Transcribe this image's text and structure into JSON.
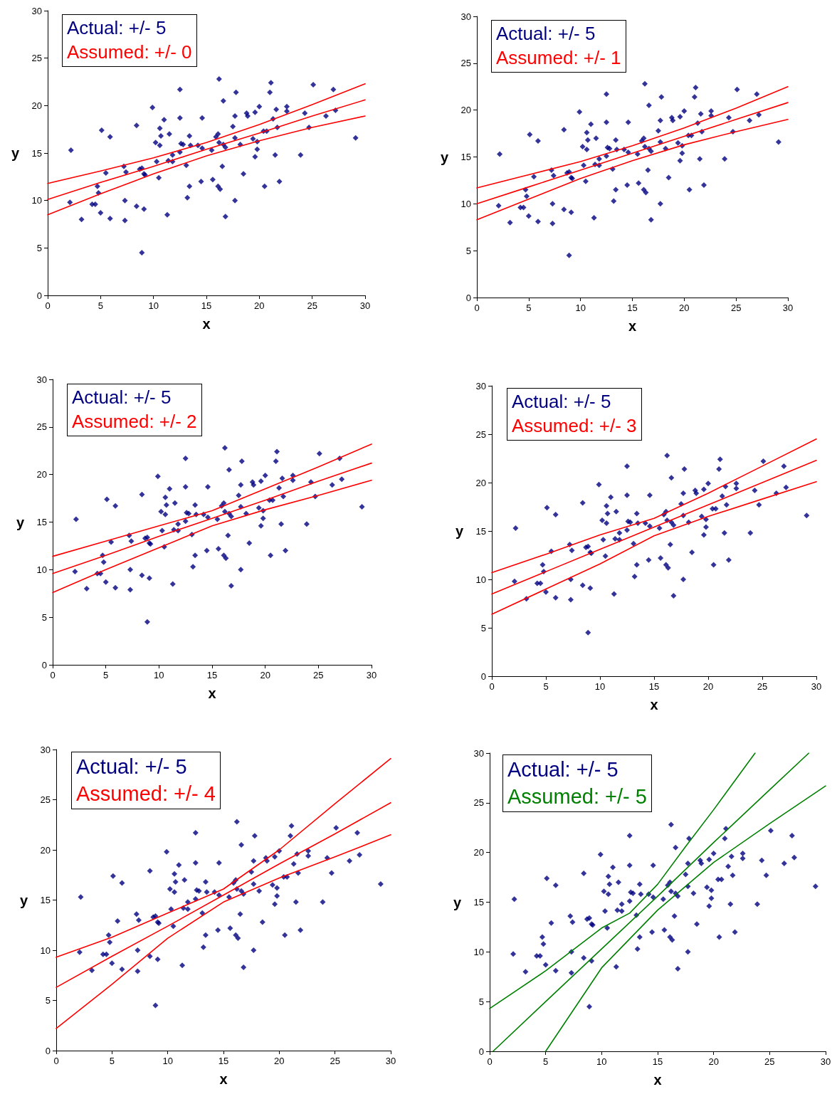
{
  "chart_data": [
    {
      "type": "scatter",
      "xlabel": "x",
      "ylabel": "y",
      "xlim": [
        0,
        30
      ],
      "ylim": [
        0,
        30
      ],
      "xticks": [
        0,
        5,
        10,
        15,
        20,
        25,
        30
      ],
      "yticks": [
        0,
        5,
        10,
        15,
        20,
        25,
        30
      ],
      "grid": false,
      "annotations": [
        "Actual: +/- 5",
        "Assumed: +/- 0"
      ],
      "series": [
        {
          "marker": "diamond",
          "color": "#000080",
          "x": [
            2.2,
            2.1,
            3.2,
            4.2,
            4.5,
            4.7,
            4.8,
            5.0,
            5.1,
            5.5,
            5.9,
            5.9,
            7.2,
            7.4,
            7.3,
            7.3,
            8.4,
            8.4,
            8.7,
            8.9,
            9.1,
            9.2,
            9.1,
            8.9,
            9.9,
            10.2,
            10.3,
            10.6,
            10.7,
            10.6,
            10.5,
            11.0,
            11.5,
            11.4,
            11.8,
            11.8,
            11.3,
            12.5,
            12.5,
            12.6,
            12.8,
            12.5,
            13.4,
            13.5,
            13.1,
            13.4,
            13.2,
            14.2,
            14.6,
            14.6,
            14.5,
            16.2,
            16.6,
            15.9,
            16.1,
            16.2,
            15.5,
            16.6,
            16.8,
            16.5,
            15.6,
            16.1,
            16.3,
            16.8,
            17.8,
            17.7,
            17.5,
            17.7,
            18.2,
            17.7,
            18.5,
            18.8,
            18.9,
            19.6,
            20.0,
            19.4,
            19.8,
            19.8,
            19.6,
            20.4,
            20.7,
            20.5,
            21.1,
            21.0,
            21.6,
            21.3,
            21.7,
            21.5,
            21.9,
            22.6,
            22.6,
            23.9,
            24.3,
            24.7,
            25.1,
            26.3,
            27.0,
            27.2,
            29.1
          ],
          "values": [
            15.3,
            9.8,
            8.0,
            9.6,
            9.6,
            11.5,
            10.8,
            8.7,
            17.4,
            12.9,
            16.7,
            8.1,
            13.6,
            13.0,
            10.0,
            7.9,
            17.9,
            9.4,
            13.3,
            13.4,
            12.8,
            12.7,
            9.1,
            4.5,
            19.8,
            16.1,
            14.1,
            17.6,
            16.8,
            15.8,
            12.4,
            18.5,
            17.0,
            14.2,
            14.8,
            14.1,
            8.5,
            21.7,
            18.7,
            16.0,
            15.9,
            15.1,
            16.8,
            15.8,
            13.7,
            11.5,
            10.3,
            15.8,
            15.5,
            18.7,
            12.0,
            22.8,
            20.5,
            16.7,
            17.0,
            16.1,
            15.3,
            15.9,
            15.6,
            13.6,
            12.2,
            11.5,
            11.2,
            8.3,
            21.4,
            18.9,
            17.8,
            16.6,
            15.9,
            10.0,
            12.8,
            19.2,
            18.9,
            19.3,
            19.9,
            16.5,
            16.2,
            15.4,
            14.6,
            17.3,
            17.3,
            11.5,
            22.4,
            21.4,
            19.6,
            18.6,
            17.7,
            14.8,
            12.0,
            19.9,
            19.4,
            14.8,
            19.2,
            17.7,
            22.2,
            18.9,
            21.7,
            19.5,
            16.6
          ]
        },
        {
          "type": "line",
          "color": "#ff0000",
          "x": [
            0,
            5,
            10,
            15,
            20,
            25,
            30
          ],
          "values": [
            11.8,
            13.1,
            14.5,
            16.1,
            18.0,
            20.1,
            22.3
          ]
        },
        {
          "type": "line",
          "color": "#ff0000",
          "x": [
            0,
            5,
            10,
            15,
            20,
            25,
            30
          ],
          "values": [
            10.1,
            11.9,
            13.6,
            15.4,
            17.1,
            18.9,
            20.6
          ]
        },
        {
          "type": "line",
          "color": "#ff0000",
          "x": [
            0,
            5,
            10,
            15,
            20,
            25,
            30
          ],
          "values": [
            8.5,
            10.7,
            12.8,
            14.7,
            16.3,
            17.7,
            18.9
          ]
        }
      ]
    },
    {
      "type": "scatter",
      "xlabel": "x",
      "ylabel": "y",
      "xlim": [
        0,
        30
      ],
      "ylim": [
        0,
        30
      ],
      "xticks": [
        0,
        5,
        10,
        15,
        20,
        25,
        30
      ],
      "yticks": [
        0,
        5,
        10,
        15,
        20,
        25,
        30
      ],
      "grid": false,
      "annotations": [
        "Actual: +/- 5",
        "Assumed: +/- 1"
      ],
      "series": [
        {
          "marker": "diamond",
          "color": "#000080",
          "x": [
            2.2,
            2.1,
            3.2,
            4.2,
            4.5,
            4.7,
            4.8,
            5.0,
            5.1,
            5.5,
            5.9,
            5.9,
            7.2,
            7.4,
            7.3,
            7.3,
            8.4,
            8.4,
            8.7,
            8.9,
            9.1,
            9.2,
            9.1,
            8.9,
            9.9,
            10.2,
            10.3,
            10.6,
            10.7,
            10.6,
            10.5,
            11.0,
            11.5,
            11.4,
            11.8,
            11.8,
            11.3,
            12.5,
            12.5,
            12.6,
            12.8,
            12.5,
            13.4,
            13.5,
            13.1,
            13.4,
            13.2,
            14.2,
            14.6,
            14.6,
            14.5,
            16.2,
            16.6,
            15.9,
            16.1,
            16.2,
            15.5,
            16.6,
            16.8,
            16.5,
            15.6,
            16.1,
            16.3,
            16.8,
            17.8,
            17.7,
            17.5,
            17.7,
            18.2,
            17.7,
            18.5,
            18.8,
            18.9,
            19.6,
            20.0,
            19.4,
            19.8,
            19.8,
            19.6,
            20.4,
            20.7,
            20.5,
            21.1,
            21.0,
            21.6,
            21.3,
            21.7,
            21.5,
            21.9,
            22.6,
            22.6,
            23.9,
            24.3,
            24.7,
            25.1,
            26.3,
            27.0,
            27.2,
            29.1
          ],
          "values": [
            15.3,
            9.8,
            8.0,
            9.6,
            9.6,
            11.5,
            10.8,
            8.7,
            17.4,
            12.9,
            16.7,
            8.1,
            13.6,
            13.0,
            10.0,
            7.9,
            17.9,
            9.4,
            13.3,
            13.4,
            12.8,
            12.7,
            9.1,
            4.5,
            19.8,
            16.1,
            14.1,
            17.6,
            16.8,
            15.8,
            12.4,
            18.5,
            17.0,
            14.2,
            14.8,
            14.1,
            8.5,
            21.7,
            18.7,
            16.0,
            15.9,
            15.1,
            16.8,
            15.8,
            13.7,
            11.5,
            10.3,
            15.8,
            15.5,
            18.7,
            12.0,
            22.8,
            20.5,
            16.7,
            17.0,
            16.1,
            15.3,
            15.9,
            15.6,
            13.6,
            12.2,
            11.5,
            11.2,
            8.3,
            21.4,
            18.9,
            17.8,
            16.6,
            15.9,
            10.0,
            12.8,
            19.2,
            18.9,
            19.3,
            19.9,
            16.5,
            16.2,
            15.4,
            14.6,
            17.3,
            17.3,
            11.5,
            22.4,
            21.4,
            19.6,
            18.6,
            17.7,
            14.8,
            12.0,
            19.9,
            19.4,
            14.8,
            19.2,
            17.7,
            22.2,
            18.9,
            21.7,
            19.5,
            16.6
          ]
        },
        {
          "type": "line",
          "color": "#ff0000",
          "x": [
            0,
            5,
            10,
            15,
            20,
            25,
            30
          ],
          "values": [
            11.7,
            13.1,
            14.5,
            16.2,
            18.1,
            20.2,
            22.5
          ]
        },
        {
          "type": "line",
          "color": "#ff0000",
          "x": [
            0,
            5,
            10,
            15,
            20,
            25,
            30
          ],
          "values": [
            10.0,
            11.8,
            13.6,
            15.4,
            17.2,
            19.0,
            20.8
          ]
        },
        {
          "type": "line",
          "color": "#ff0000",
          "x": [
            0,
            5,
            10,
            15,
            20,
            25,
            30
          ],
          "values": [
            8.3,
            10.5,
            12.7,
            14.6,
            16.3,
            17.7,
            19.0
          ]
        }
      ]
    },
    {
      "type": "scatter",
      "xlabel": "x",
      "ylabel": "y",
      "xlim": [
        0,
        30
      ],
      "ylim": [
        0,
        30
      ],
      "xticks": [
        0,
        5,
        10,
        15,
        20,
        25,
        30
      ],
      "yticks": [
        0,
        5,
        10,
        15,
        20,
        25,
        30
      ],
      "grid": false,
      "annotations": [
        "Actual: +/- 5",
        "Assumed: +/- 2"
      ],
      "series": [
        {
          "marker": "diamond",
          "color": "#000080",
          "x": [
            2.2,
            2.1,
            3.2,
            4.2,
            4.5,
            4.7,
            4.8,
            5.0,
            5.1,
            5.5,
            5.9,
            5.9,
            7.2,
            7.4,
            7.3,
            7.3,
            8.4,
            8.4,
            8.7,
            8.9,
            9.1,
            9.2,
            9.1,
            8.9,
            9.9,
            10.2,
            10.3,
            10.6,
            10.7,
            10.6,
            10.5,
            11.0,
            11.5,
            11.4,
            11.8,
            11.8,
            11.3,
            12.5,
            12.5,
            12.6,
            12.8,
            12.5,
            13.4,
            13.5,
            13.1,
            13.4,
            13.2,
            14.2,
            14.6,
            14.6,
            14.5,
            16.2,
            16.6,
            15.9,
            16.1,
            16.2,
            15.5,
            16.6,
            16.8,
            16.5,
            15.6,
            16.1,
            16.3,
            16.8,
            17.8,
            17.7,
            17.5,
            17.7,
            18.2,
            17.7,
            18.5,
            18.8,
            18.9,
            19.6,
            20.0,
            19.4,
            19.8,
            19.8,
            19.6,
            20.4,
            20.7,
            20.5,
            21.1,
            21.0,
            21.6,
            21.3,
            21.7,
            21.5,
            21.9,
            22.6,
            22.6,
            23.9,
            24.3,
            24.7,
            25.1,
            26.3,
            27.0,
            27.2,
            29.1
          ],
          "values": [
            15.3,
            9.8,
            8.0,
            9.6,
            9.6,
            11.5,
            10.8,
            8.7,
            17.4,
            12.9,
            16.7,
            8.1,
            13.6,
            13.0,
            10.0,
            7.9,
            17.9,
            9.4,
            13.3,
            13.4,
            12.8,
            12.7,
            9.1,
            4.5,
            19.8,
            16.1,
            14.1,
            17.6,
            16.8,
            15.8,
            12.4,
            18.5,
            17.0,
            14.2,
            14.8,
            14.1,
            8.5,
            21.7,
            18.7,
            16.0,
            15.9,
            15.1,
            16.8,
            15.8,
            13.7,
            11.5,
            10.3,
            15.8,
            15.5,
            18.7,
            12.0,
            22.8,
            20.5,
            16.7,
            17.0,
            16.1,
            15.3,
            15.9,
            15.6,
            13.6,
            12.2,
            11.5,
            11.2,
            8.3,
            21.4,
            18.9,
            17.8,
            16.6,
            15.9,
            10.0,
            12.8,
            19.2,
            18.9,
            19.3,
            19.9,
            16.5,
            16.2,
            15.4,
            14.6,
            17.3,
            17.3,
            11.5,
            22.4,
            21.4,
            19.6,
            18.6,
            17.7,
            14.8,
            12.0,
            19.9,
            19.4,
            14.8,
            19.2,
            17.7,
            22.2,
            18.9,
            21.7,
            19.5,
            16.6
          ]
        },
        {
          "type": "line",
          "color": "#ff0000",
          "x": [
            0,
            5,
            10,
            15,
            20,
            25,
            30
          ],
          "values": [
            11.4,
            13.0,
            14.6,
            16.2,
            18.5,
            20.8,
            23.2
          ]
        },
        {
          "type": "line",
          "color": "#ff0000",
          "x": [
            0,
            5,
            10,
            15,
            20,
            25,
            30
          ],
          "values": [
            9.6,
            11.5,
            13.5,
            15.4,
            17.3,
            19.3,
            21.2
          ]
        },
        {
          "type": "line",
          "color": "#ff0000",
          "x": [
            0,
            5,
            10,
            15,
            20,
            25,
            30
          ],
          "values": [
            7.6,
            10.0,
            12.3,
            14.6,
            16.3,
            17.8,
            19.4
          ]
        }
      ]
    },
    {
      "type": "scatter",
      "xlabel": "x",
      "ylabel": "y",
      "xlim": [
        0,
        30
      ],
      "ylim": [
        0,
        30
      ],
      "xticks": [
        0,
        5,
        10,
        15,
        20,
        25,
        30
      ],
      "yticks": [
        0,
        5,
        10,
        15,
        20,
        25,
        30
      ],
      "grid": false,
      "annotations": [
        "Actual: +/- 5",
        "Assumed: +/- 3"
      ],
      "series": [
        {
          "marker": "diamond",
          "color": "#000080",
          "x": [
            2.2,
            2.1,
            3.2,
            4.2,
            4.5,
            4.7,
            4.8,
            5.0,
            5.1,
            5.5,
            5.9,
            5.9,
            7.2,
            7.4,
            7.3,
            7.3,
            8.4,
            8.4,
            8.7,
            8.9,
            9.1,
            9.2,
            9.1,
            8.9,
            9.9,
            10.2,
            10.3,
            10.6,
            10.7,
            10.6,
            10.5,
            11.0,
            11.5,
            11.4,
            11.8,
            11.8,
            11.3,
            12.5,
            12.5,
            12.6,
            12.8,
            12.5,
            13.4,
            13.5,
            13.1,
            13.4,
            13.2,
            14.2,
            14.6,
            14.6,
            14.5,
            16.2,
            16.6,
            15.9,
            16.1,
            16.2,
            15.5,
            16.6,
            16.8,
            16.5,
            15.6,
            16.1,
            16.3,
            16.8,
            17.8,
            17.7,
            17.5,
            17.7,
            18.2,
            17.7,
            18.5,
            18.8,
            18.9,
            19.6,
            20.0,
            19.4,
            19.8,
            19.8,
            19.6,
            20.4,
            20.7,
            20.5,
            21.1,
            21.0,
            21.6,
            21.3,
            21.7,
            21.5,
            21.9,
            22.6,
            22.6,
            23.9,
            24.3,
            24.7,
            25.1,
            26.3,
            27.0,
            27.2,
            29.1
          ],
          "values": [
            15.3,
            9.8,
            8.0,
            9.6,
            9.6,
            11.5,
            10.8,
            8.7,
            17.4,
            12.9,
            16.7,
            8.1,
            13.6,
            13.0,
            10.0,
            7.9,
            17.9,
            9.4,
            13.3,
            13.4,
            12.8,
            12.7,
            9.1,
            4.5,
            19.8,
            16.1,
            14.1,
            17.6,
            16.8,
            15.8,
            12.4,
            18.5,
            17.0,
            14.2,
            14.8,
            14.1,
            8.5,
            21.7,
            18.7,
            16.0,
            15.9,
            15.1,
            16.8,
            15.8,
            13.7,
            11.5,
            10.3,
            15.8,
            15.5,
            18.7,
            12.0,
            22.8,
            20.5,
            16.7,
            17.0,
            16.1,
            15.3,
            15.9,
            15.6,
            13.6,
            12.2,
            11.5,
            11.2,
            8.3,
            21.4,
            18.9,
            17.8,
            16.6,
            15.9,
            10.0,
            12.8,
            19.2,
            18.9,
            19.3,
            19.9,
            16.5,
            16.2,
            15.4,
            14.6,
            17.3,
            17.3,
            11.5,
            22.4,
            21.4,
            19.6,
            18.6,
            17.7,
            14.8,
            12.0,
            19.9,
            19.4,
            14.8,
            19.2,
            17.7,
            22.2,
            18.9,
            21.7,
            19.5,
            16.6
          ]
        },
        {
          "type": "line",
          "color": "#ff0000",
          "x": [
            0,
            5,
            10,
            15,
            20,
            25,
            30
          ],
          "values": [
            10.7,
            12.6,
            14.6,
            16.3,
            18.9,
            21.7,
            24.5
          ]
        },
        {
          "type": "line",
          "color": "#ff0000",
          "x": [
            0,
            5,
            10,
            15,
            20,
            25,
            30
          ],
          "values": [
            8.5,
            10.8,
            13.1,
            15.4,
            17.7,
            20.0,
            22.3
          ]
        },
        {
          "type": "line",
          "color": "#ff0000",
          "x": [
            0,
            5,
            10,
            15,
            20,
            25,
            30
          ],
          "values": [
            6.4,
            9.0,
            11.6,
            14.5,
            16.5,
            18.3,
            20.1
          ]
        }
      ]
    },
    {
      "type": "scatter",
      "xlabel": "x",
      "ylabel": "y",
      "xlim": [
        0,
        30
      ],
      "ylim": [
        0,
        30
      ],
      "xticks": [
        0,
        5,
        10,
        15,
        20,
        25,
        30
      ],
      "yticks": [
        0,
        5,
        10,
        15,
        20,
        25,
        30
      ],
      "grid": false,
      "annotations": [
        "Actual: +/- 5",
        "Assumed: +/- 4"
      ],
      "series": [
        {
          "marker": "diamond",
          "color": "#000080",
          "x": [
            2.2,
            2.1,
            3.2,
            4.2,
            4.5,
            4.7,
            4.8,
            5.0,
            5.1,
            5.5,
            5.9,
            5.9,
            7.2,
            7.4,
            7.3,
            7.3,
            8.4,
            8.4,
            8.7,
            8.9,
            9.1,
            9.2,
            9.1,
            8.9,
            9.9,
            10.2,
            10.3,
            10.6,
            10.7,
            10.6,
            10.5,
            11.0,
            11.5,
            11.4,
            11.8,
            11.8,
            11.3,
            12.5,
            12.5,
            12.6,
            12.8,
            12.5,
            13.4,
            13.5,
            13.1,
            13.4,
            13.2,
            14.2,
            14.6,
            14.6,
            14.5,
            16.2,
            16.6,
            15.9,
            16.1,
            16.2,
            15.5,
            16.6,
            16.8,
            16.5,
            15.6,
            16.1,
            16.3,
            16.8,
            17.8,
            17.7,
            17.5,
            17.7,
            18.2,
            17.7,
            18.5,
            18.8,
            18.9,
            19.6,
            20.0,
            19.4,
            19.8,
            19.8,
            19.6,
            20.4,
            20.7,
            20.5,
            21.1,
            21.0,
            21.6,
            21.3,
            21.7,
            21.5,
            21.9,
            22.6,
            22.6,
            23.9,
            24.3,
            24.7,
            25.1,
            26.3,
            27.0,
            27.2,
            29.1
          ],
          "values": [
            15.3,
            9.8,
            8.0,
            9.6,
            9.6,
            11.5,
            10.8,
            8.7,
            17.4,
            12.9,
            16.7,
            8.1,
            13.6,
            13.0,
            10.0,
            7.9,
            17.9,
            9.4,
            13.3,
            13.4,
            12.8,
            12.7,
            9.1,
            4.5,
            19.8,
            16.1,
            14.1,
            17.6,
            16.8,
            15.8,
            12.4,
            18.5,
            17.0,
            14.2,
            14.8,
            14.1,
            8.5,
            21.7,
            18.7,
            16.0,
            15.9,
            15.1,
            16.8,
            15.8,
            13.7,
            11.5,
            10.3,
            15.8,
            15.5,
            18.7,
            12.0,
            22.8,
            20.5,
            16.7,
            17.0,
            16.1,
            15.3,
            15.9,
            15.6,
            13.6,
            12.2,
            11.5,
            11.2,
            8.3,
            21.4,
            18.9,
            17.8,
            16.6,
            15.9,
            10.0,
            12.8,
            19.2,
            18.9,
            19.3,
            19.9,
            16.5,
            16.2,
            15.4,
            14.6,
            17.3,
            17.3,
            11.5,
            22.4,
            21.4,
            19.6,
            18.6,
            17.7,
            14.8,
            12.0,
            19.9,
            19.4,
            14.8,
            19.2,
            17.7,
            22.2,
            18.9,
            21.7,
            19.5,
            16.6
          ]
        },
        {
          "type": "line",
          "color": "#ff0000",
          "x": [
            0,
            5,
            10,
            15,
            20,
            25,
            30
          ],
          "values": [
            9.3,
            11.3,
            13.7,
            16.1,
            20.0,
            24.6,
            29.1
          ]
        },
        {
          "type": "line",
          "color": "#ff0000",
          "x": [
            0,
            5,
            10,
            15,
            20,
            25,
            30
          ],
          "values": [
            6.3,
            9.4,
            12.4,
            15.5,
            18.6,
            21.6,
            24.7
          ]
        },
        {
          "type": "line",
          "color": "#ff0000",
          "x": [
            0,
            5,
            10,
            15,
            20,
            25,
            30
          ],
          "values": [
            2.2,
            6.6,
            11.2,
            14.8,
            17.2,
            19.3,
            21.5
          ]
        }
      ]
    },
    {
      "type": "scatter",
      "xlabel": "x",
      "ylabel": "y",
      "xlim": [
        0,
        30
      ],
      "ylim": [
        0,
        30
      ],
      "xticks": [
        0,
        5,
        10,
        15,
        20,
        25,
        30
      ],
      "yticks": [
        0,
        5,
        10,
        15,
        20,
        25,
        30
      ],
      "grid": false,
      "annotations": [
        "Actual: +/- 5",
        "Assumed: +/- 5"
      ],
      "series": [
        {
          "marker": "diamond",
          "color": "#000080",
          "x": [
            2.2,
            2.1,
            3.2,
            4.2,
            4.5,
            4.7,
            4.8,
            5.0,
            5.1,
            5.5,
            5.9,
            5.9,
            7.2,
            7.4,
            7.3,
            7.3,
            8.4,
            8.4,
            8.7,
            8.9,
            9.1,
            9.2,
            9.1,
            8.9,
            9.9,
            10.2,
            10.3,
            10.6,
            10.7,
            10.6,
            10.5,
            11.0,
            11.5,
            11.4,
            11.8,
            11.8,
            11.3,
            12.5,
            12.5,
            12.6,
            12.8,
            12.5,
            13.4,
            13.5,
            13.1,
            13.4,
            13.2,
            14.2,
            14.6,
            14.6,
            14.5,
            16.2,
            16.6,
            15.9,
            16.1,
            16.2,
            15.5,
            16.6,
            16.8,
            16.5,
            15.6,
            16.1,
            16.3,
            16.8,
            17.8,
            17.7,
            17.5,
            17.7,
            18.2,
            17.7,
            18.5,
            18.8,
            18.9,
            19.6,
            20.0,
            19.4,
            19.8,
            19.8,
            19.6,
            20.4,
            20.7,
            20.5,
            21.1,
            21.0,
            21.6,
            21.3,
            21.7,
            21.5,
            21.9,
            22.6,
            22.6,
            23.9,
            24.3,
            24.7,
            25.1,
            26.3,
            27.0,
            27.2,
            29.1
          ],
          "values": [
            15.3,
            9.8,
            8.0,
            9.6,
            9.6,
            11.5,
            10.8,
            8.7,
            17.4,
            12.9,
            16.7,
            8.1,
            13.6,
            13.0,
            10.0,
            7.9,
            17.9,
            9.4,
            13.3,
            13.4,
            12.8,
            12.7,
            9.1,
            4.5,
            19.8,
            16.1,
            14.1,
            17.6,
            16.8,
            15.8,
            12.4,
            18.5,
            17.0,
            14.2,
            14.8,
            14.1,
            8.5,
            21.7,
            18.7,
            16.0,
            15.9,
            15.1,
            16.8,
            15.8,
            13.7,
            11.5,
            10.3,
            15.8,
            15.5,
            18.7,
            12.0,
            22.8,
            20.5,
            16.7,
            17.0,
            16.1,
            15.3,
            15.9,
            15.6,
            13.6,
            12.2,
            11.5,
            11.2,
            8.3,
            21.4,
            18.9,
            17.8,
            16.6,
            15.9,
            10.0,
            12.8,
            19.2,
            18.9,
            19.3,
            19.9,
            16.5,
            16.2,
            15.4,
            14.6,
            17.3,
            17.3,
            11.5,
            22.4,
            21.4,
            19.6,
            18.6,
            17.7,
            14.8,
            12.0,
            19.9,
            19.4,
            14.8,
            19.2,
            17.7,
            22.2,
            18.9,
            21.7,
            19.5,
            16.6
          ]
        },
        {
          "type": "line",
          "color": "#008000",
          "x": [
            0,
            5,
            10,
            12.5,
            15,
            17.5,
            20,
            23.7
          ],
          "values": [
            4.3,
            8.1,
            12.4,
            13.9,
            16.8,
            20.6,
            24.3,
            30
          ]
        },
        {
          "type": "line",
          "color": "#008000",
          "x": [
            0.3,
            5,
            10,
            15,
            20,
            25,
            28.5
          ],
          "values": [
            0,
            5.0,
            10.3,
            15.6,
            21.0,
            26.3,
            30
          ]
        },
        {
          "type": "line",
          "color": "#008000",
          "x": [
            5.0,
            10,
            15,
            20,
            25,
            30
          ],
          "values": [
            0,
            8.4,
            14.2,
            19.0,
            22.9,
            26.7
          ]
        }
      ]
    }
  ]
}
